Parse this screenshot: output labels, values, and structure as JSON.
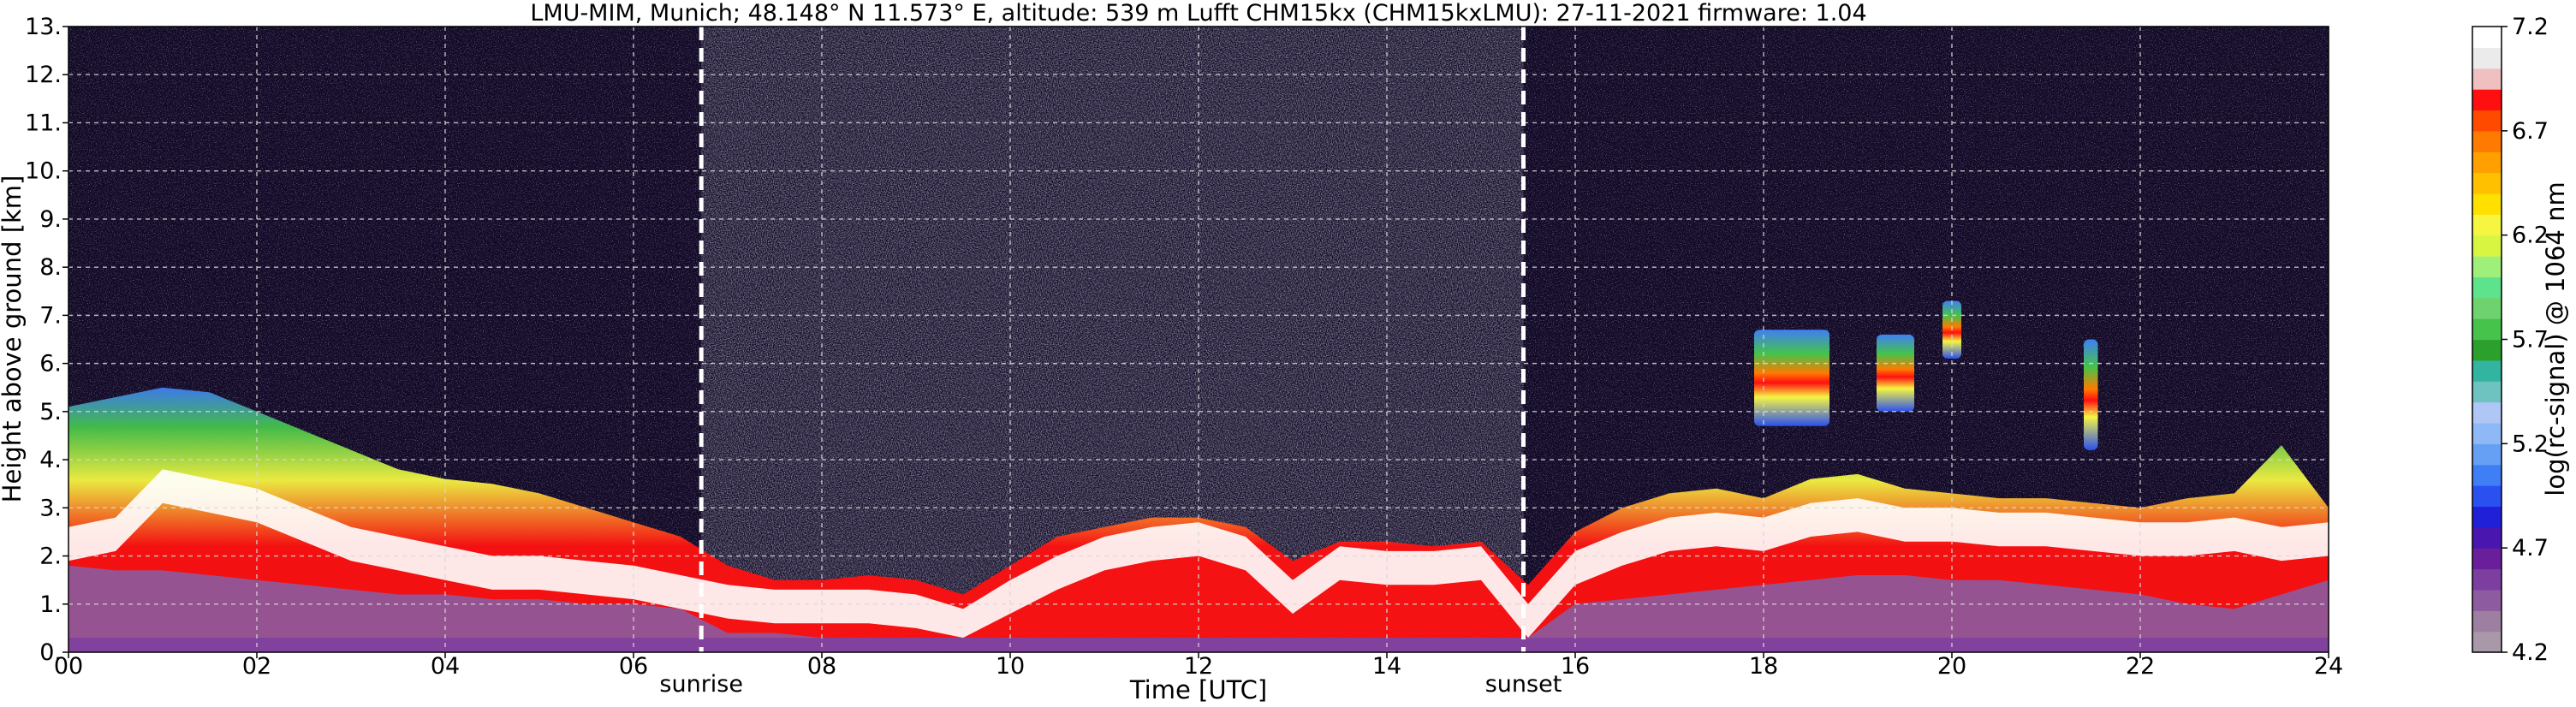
{
  "chart_data": {
    "type": "heatmap",
    "title": "LMU-MIM, Munich; 48.148° N 11.573° E, altitude: 539 m    Lufft CHM15kx (CHM15kxLMU): 27-11-2021    firmware: 1.04",
    "xlabel": "Time [UTC]",
    "ylabel": "Height above ground [km]",
    "xlim": [
      0,
      24
    ],
    "ylim": [
      0,
      13
    ],
    "x_ticks": [
      "00",
      "02",
      "04",
      "06",
      "08",
      "10",
      "12",
      "14",
      "16",
      "18",
      "20",
      "22",
      "24"
    ],
    "y_ticks": [
      "0.",
      "1.",
      "2.",
      "3.",
      "4.",
      "5.",
      "6.",
      "7.",
      "8.",
      "9.",
      "10.",
      "11.",
      "12.",
      "13."
    ],
    "grid": true,
    "events": [
      {
        "label": "sunrise",
        "time": 6.72
      },
      {
        "label": "sunset",
        "time": 15.45
      }
    ],
    "colorbar": {
      "label": "log(rc-signal) @ 1064 nm",
      "range": [
        4.2,
        7.2
      ],
      "ticks": [
        "4.2",
        "4.7",
        "5.2",
        "5.7",
        "6.2",
        "6.7",
        "7.2"
      ],
      "colors": [
        "#a898a8",
        "#9c7fa1",
        "#8c5ba0",
        "#7c3fa0",
        "#6a1f9a",
        "#4a16b0",
        "#2020d8",
        "#2a50f0",
        "#3f7ff5",
        "#66a0f5",
        "#8fb8f6",
        "#b0c6f6",
        "#6ec3c0",
        "#32b5a0",
        "#2ca02c",
        "#45c34a",
        "#6ed36e",
        "#5fe28c",
        "#9ef07a",
        "#d8f542",
        "#f5f542",
        "#ffe000",
        "#ffc000",
        "#ffa000",
        "#ff7a00",
        "#ff4a00",
        "#ff1010",
        "#f0c0c0",
        "#ebebeb",
        "#ffffff"
      ]
    },
    "boundary_layer": {
      "hours": [
        0,
        0.5,
        1,
        1.5,
        2,
        2.5,
        3,
        3.5,
        4,
        4.5,
        5,
        5.5,
        6,
        6.5,
        7,
        7.5,
        8,
        8.5,
        9,
        9.5,
        10,
        10.5,
        11,
        11.5,
        12,
        12.5,
        13,
        13.5,
        14,
        14.5,
        15,
        15.5,
        16,
        16.5,
        17,
        17.5,
        18,
        18.5,
        19,
        19.5,
        20,
        20.5,
        21,
        21.5,
        22,
        22.5,
        23,
        23.5,
        24
      ],
      "aerosol_top_km": [
        5.1,
        5.3,
        5.5,
        5.4,
        5.0,
        4.6,
        4.2,
        3.8,
        3.6,
        3.5,
        3.3,
        3.0,
        2.7,
        2.4,
        1.8,
        1.5,
        1.5,
        1.6,
        1.5,
        1.2,
        1.8,
        2.4,
        2.6,
        2.8,
        2.8,
        2.6,
        1.9,
        2.3,
        2.3,
        2.2,
        2.3,
        1.4,
        2.5,
        3.0,
        3.3,
        3.4,
        3.2,
        3.6,
        3.7,
        3.4,
        3.3,
        3.2,
        3.2,
        3.1,
        3.0,
        3.2,
        3.3,
        4.3,
        3.0
      ],
      "strong_layer_top_km": [
        2.6,
        2.8,
        3.8,
        3.6,
        3.4,
        3.0,
        2.6,
        2.4,
        2.2,
        2.0,
        2.0,
        1.9,
        1.8,
        1.6,
        1.4,
        1.3,
        1.3,
        1.3,
        1.2,
        0.9,
        1.5,
        2.0,
        2.4,
        2.6,
        2.7,
        2.4,
        1.5,
        2.2,
        2.1,
        2.1,
        2.2,
        1.0,
        2.1,
        2.5,
        2.8,
        2.9,
        2.8,
        3.1,
        3.2,
        3.0,
        3.0,
        2.9,
        2.9,
        2.8,
        2.7,
        2.7,
        2.8,
        2.6,
        2.7
      ],
      "residual_top_km": [
        1.8,
        1.7,
        1.7,
        1.6,
        1.5,
        1.4,
        1.3,
        1.2,
        1.2,
        1.1,
        1.1,
        1.0,
        1.0,
        0.9,
        0.4,
        0.4,
        0.3,
        0.3,
        0.3,
        0.3,
        0.3,
        0.3,
        0.3,
        0.3,
        0.3,
        0.3,
        0.3,
        0.3,
        0.3,
        0.3,
        0.3,
        0.3,
        1.0,
        1.1,
        1.2,
        1.3,
        1.4,
        1.5,
        1.6,
        1.6,
        1.5,
        1.5,
        1.4,
        1.3,
        1.2,
        1.0,
        0.9,
        1.2,
        1.5
      ]
    },
    "elevated_layers": [
      {
        "start": 17.9,
        "end": 18.7,
        "base_km": 4.7,
        "top_km": 6.7
      },
      {
        "start": 19.2,
        "end": 19.6,
        "base_km": 5.0,
        "top_km": 6.6
      },
      {
        "start": 19.9,
        "end": 20.1,
        "base_km": 6.1,
        "top_km": 7.3
      },
      {
        "start": 21.4,
        "end": 21.55,
        "base_km": 4.2,
        "top_km": 6.5
      }
    ]
  }
}
